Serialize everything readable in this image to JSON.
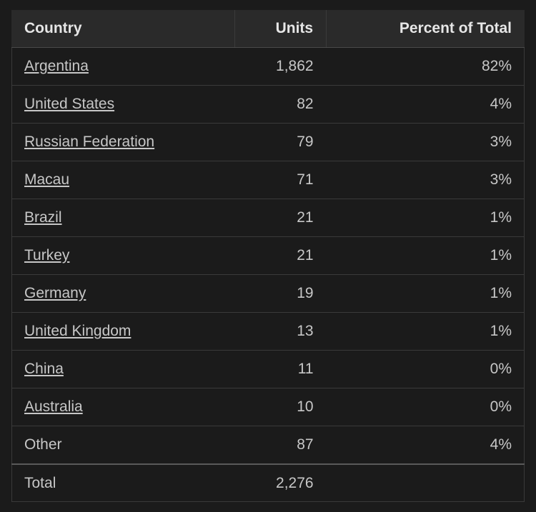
{
  "table": {
    "columns": {
      "country": "Country",
      "units": "Units",
      "percent": "Percent of Total"
    },
    "rows": [
      {
        "country": "Argentina",
        "units": "1,862",
        "percent": "82%",
        "is_link": true
      },
      {
        "country": "United States",
        "units": "82",
        "percent": "4%",
        "is_link": true
      },
      {
        "country": "Russian Federation",
        "units": "79",
        "percent": "3%",
        "is_link": true
      },
      {
        "country": "Macau",
        "units": "71",
        "percent": "3%",
        "is_link": true
      },
      {
        "country": "Brazil",
        "units": "21",
        "percent": "1%",
        "is_link": true
      },
      {
        "country": "Turkey",
        "units": "21",
        "percent": "1%",
        "is_link": true
      },
      {
        "country": "Germany",
        "units": "19",
        "percent": "1%",
        "is_link": true
      },
      {
        "country": "United Kingdom",
        "units": "13",
        "percent": "1%",
        "is_link": true
      },
      {
        "country": "China",
        "units": "11",
        "percent": "0%",
        "is_link": true
      },
      {
        "country": "Australia",
        "units": "10",
        "percent": "0%",
        "is_link": true
      },
      {
        "country": "Other",
        "units": "87",
        "percent": "4%",
        "is_link": false
      }
    ],
    "total": {
      "label": "Total",
      "units": "2,276",
      "percent": ""
    },
    "style": {
      "background_color": "#1b1b1b",
      "header_background": "#2a2a2a",
      "text_color": "#c7c7c7",
      "header_text_color": "#e6e6e6",
      "border_color": "#3a3a3a",
      "header_border_color": "#4a4a4a",
      "total_border_color": "#5a5a5a",
      "font_size": 21,
      "header_font_weight": 700,
      "body_font_weight": 400,
      "column_align": [
        "left",
        "right",
        "right"
      ]
    }
  }
}
